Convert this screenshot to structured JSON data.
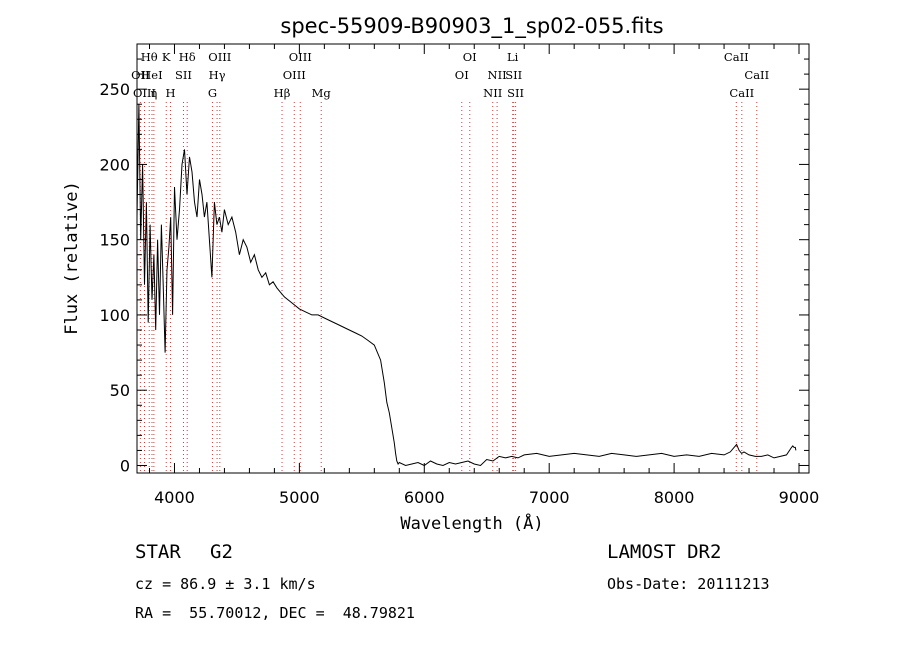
{
  "chart_data": {
    "type": "line",
    "title": "spec-55909-B90903_1_sp02-055.fits",
    "xlabel": "Wavelength (Å)",
    "ylabel": "Flux (relative)",
    "xlim": [
      3700,
      9080
    ],
    "ylim": [
      -5,
      280
    ],
    "xticks": [
      4000,
      5000,
      6000,
      7000,
      8000,
      9000
    ],
    "yticks": [
      0,
      50,
      100,
      150,
      200,
      250
    ],
    "grid": false,
    "series": [
      {
        "x": [
          3700,
          3715,
          3730,
          3745,
          3760,
          3775,
          3790,
          3805,
          3820,
          3835,
          3850,
          3865,
          3880,
          3895,
          3910,
          3925,
          3940,
          3955,
          3970,
          3985,
          4000,
          4020,
          4040,
          4060,
          4080,
          4100,
          4120,
          4140,
          4160,
          4180,
          4200,
          4220,
          4240,
          4260,
          4280,
          4300,
          4320,
          4340,
          4360,
          4380,
          4400,
          4430,
          4460,
          4490,
          4520,
          4550,
          4580,
          4610,
          4640,
          4670,
          4700,
          4730,
          4760,
          4790,
          4820,
          4850,
          4880,
          4910,
          4940,
          4970,
          5000,
          5050,
          5100,
          5150,
          5200,
          5250,
          5300,
          5350,
          5400,
          5450,
          5500,
          5550,
          5600,
          5650,
          5680,
          5700,
          5720,
          5740,
          5760,
          5770,
          5780,
          5790,
          5800,
          5850,
          5900,
          5950,
          6000,
          6050,
          6100,
          6150,
          6200,
          6250,
          6300,
          6350,
          6400,
          6450,
          6500,
          6550,
          6600,
          6650,
          6700,
          6750,
          6800,
          6900,
          7000,
          7100,
          7200,
          7300,
          7400,
          7500,
          7600,
          7700,
          7800,
          7900,
          8000,
          8100,
          8200,
          8300,
          8400,
          8450,
          8500,
          8520,
          8540,
          8560,
          8600,
          8650,
          8700,
          8750,
          8800,
          8850,
          8900,
          8940,
          8950,
          8960,
          8970,
          8975
        ],
        "y": [
          165,
          240,
          150,
          200,
          120,
          175,
          95,
          160,
          110,
          140,
          90,
          150,
          100,
          160,
          120,
          75,
          130,
          145,
          165,
          100,
          185,
          150,
          170,
          200,
          210,
          180,
          205,
          195,
          175,
          165,
          190,
          180,
          165,
          175,
          150,
          125,
          175,
          160,
          165,
          155,
          170,
          160,
          165,
          155,
          140,
          150,
          145,
          135,
          140,
          130,
          125,
          128,
          120,
          122,
          118,
          115,
          112,
          110,
          108,
          106,
          104,
          102,
          100,
          100,
          98,
          96,
          94,
          92,
          90,
          88,
          86,
          83,
          80,
          70,
          55,
          42,
          35,
          25,
          15,
          8,
          3,
          1,
          2,
          0,
          1,
          2,
          0,
          3,
          1,
          0,
          2,
          1,
          2,
          3,
          1,
          0,
          4,
          3,
          6,
          5,
          6,
          5,
          7,
          8,
          6,
          7,
          8,
          7,
          6,
          8,
          7,
          6,
          7,
          8,
          6,
          7,
          6,
          8,
          7,
          9,
          14,
          10,
          8,
          9,
          7,
          6,
          6,
          7,
          5,
          6,
          7,
          12,
          13,
          12,
          12,
          10
        ]
      }
    ],
    "spectral_lines": [
      {
        "label": "Hθ",
        "x": 3798,
        "row": 0
      },
      {
        "label": "OII",
        "x": 3727,
        "row": 1
      },
      {
        "label": "HeI",
        "x": 3820,
        "row": 1
      },
      {
        "label": "OIII",
        "x": 3760,
        "row": 2
      },
      {
        "label": "η",
        "x": 3835,
        "row": 2
      },
      {
        "label": "K",
        "x": 3934,
        "row": 0
      },
      {
        "label": "H",
        "x": 3968,
        "row": 2
      },
      {
        "label": "SII",
        "x": 4072,
        "row": 1
      },
      {
        "label": "Hδ",
        "x": 4102,
        "row": 0
      },
      {
        "label": "OIII",
        "x": 4363,
        "row": 0
      },
      {
        "label": "Hγ",
        "x": 4341,
        "row": 1
      },
      {
        "label": "G",
        "x": 4304,
        "row": 2
      },
      {
        "label": "Hβ",
        "x": 4861,
        "row": 2
      },
      {
        "label": "OIII",
        "x": 5007,
        "row": 0
      },
      {
        "label": "OIII",
        "x": 4959,
        "row": 1
      },
      {
        "label": "Mg",
        "x": 5175,
        "row": 2
      },
      {
        "label": "OI",
        "x": 6364,
        "row": 0
      },
      {
        "label": "OI",
        "x": 6300,
        "row": 1
      },
      {
        "label": "Li",
        "x": 6708,
        "row": 0
      },
      {
        "label": "NII",
        "x": 6583,
        "row": 1
      },
      {
        "label": "SII",
        "x": 6716,
        "row": 1
      },
      {
        "label": "NII",
        "x": 6548,
        "row": 2
      },
      {
        "label": "SII",
        "x": 6731,
        "row": 2
      },
      {
        "label": "CaII",
        "x": 8498,
        "row": 0
      },
      {
        "label": "CaII",
        "x": 8662,
        "row": 1
      },
      {
        "label": "CaII",
        "x": 8542,
        "row": 2
      }
    ]
  },
  "info": {
    "object_class": "STAR",
    "subclass": "G2",
    "survey": "LAMOST DR2",
    "redshift": "cz = 86.9 ± 3.1 km/s",
    "obs_date": "Obs-Date: 20111213",
    "coords": "RA =  55.70012, DEC =  48.79821"
  }
}
